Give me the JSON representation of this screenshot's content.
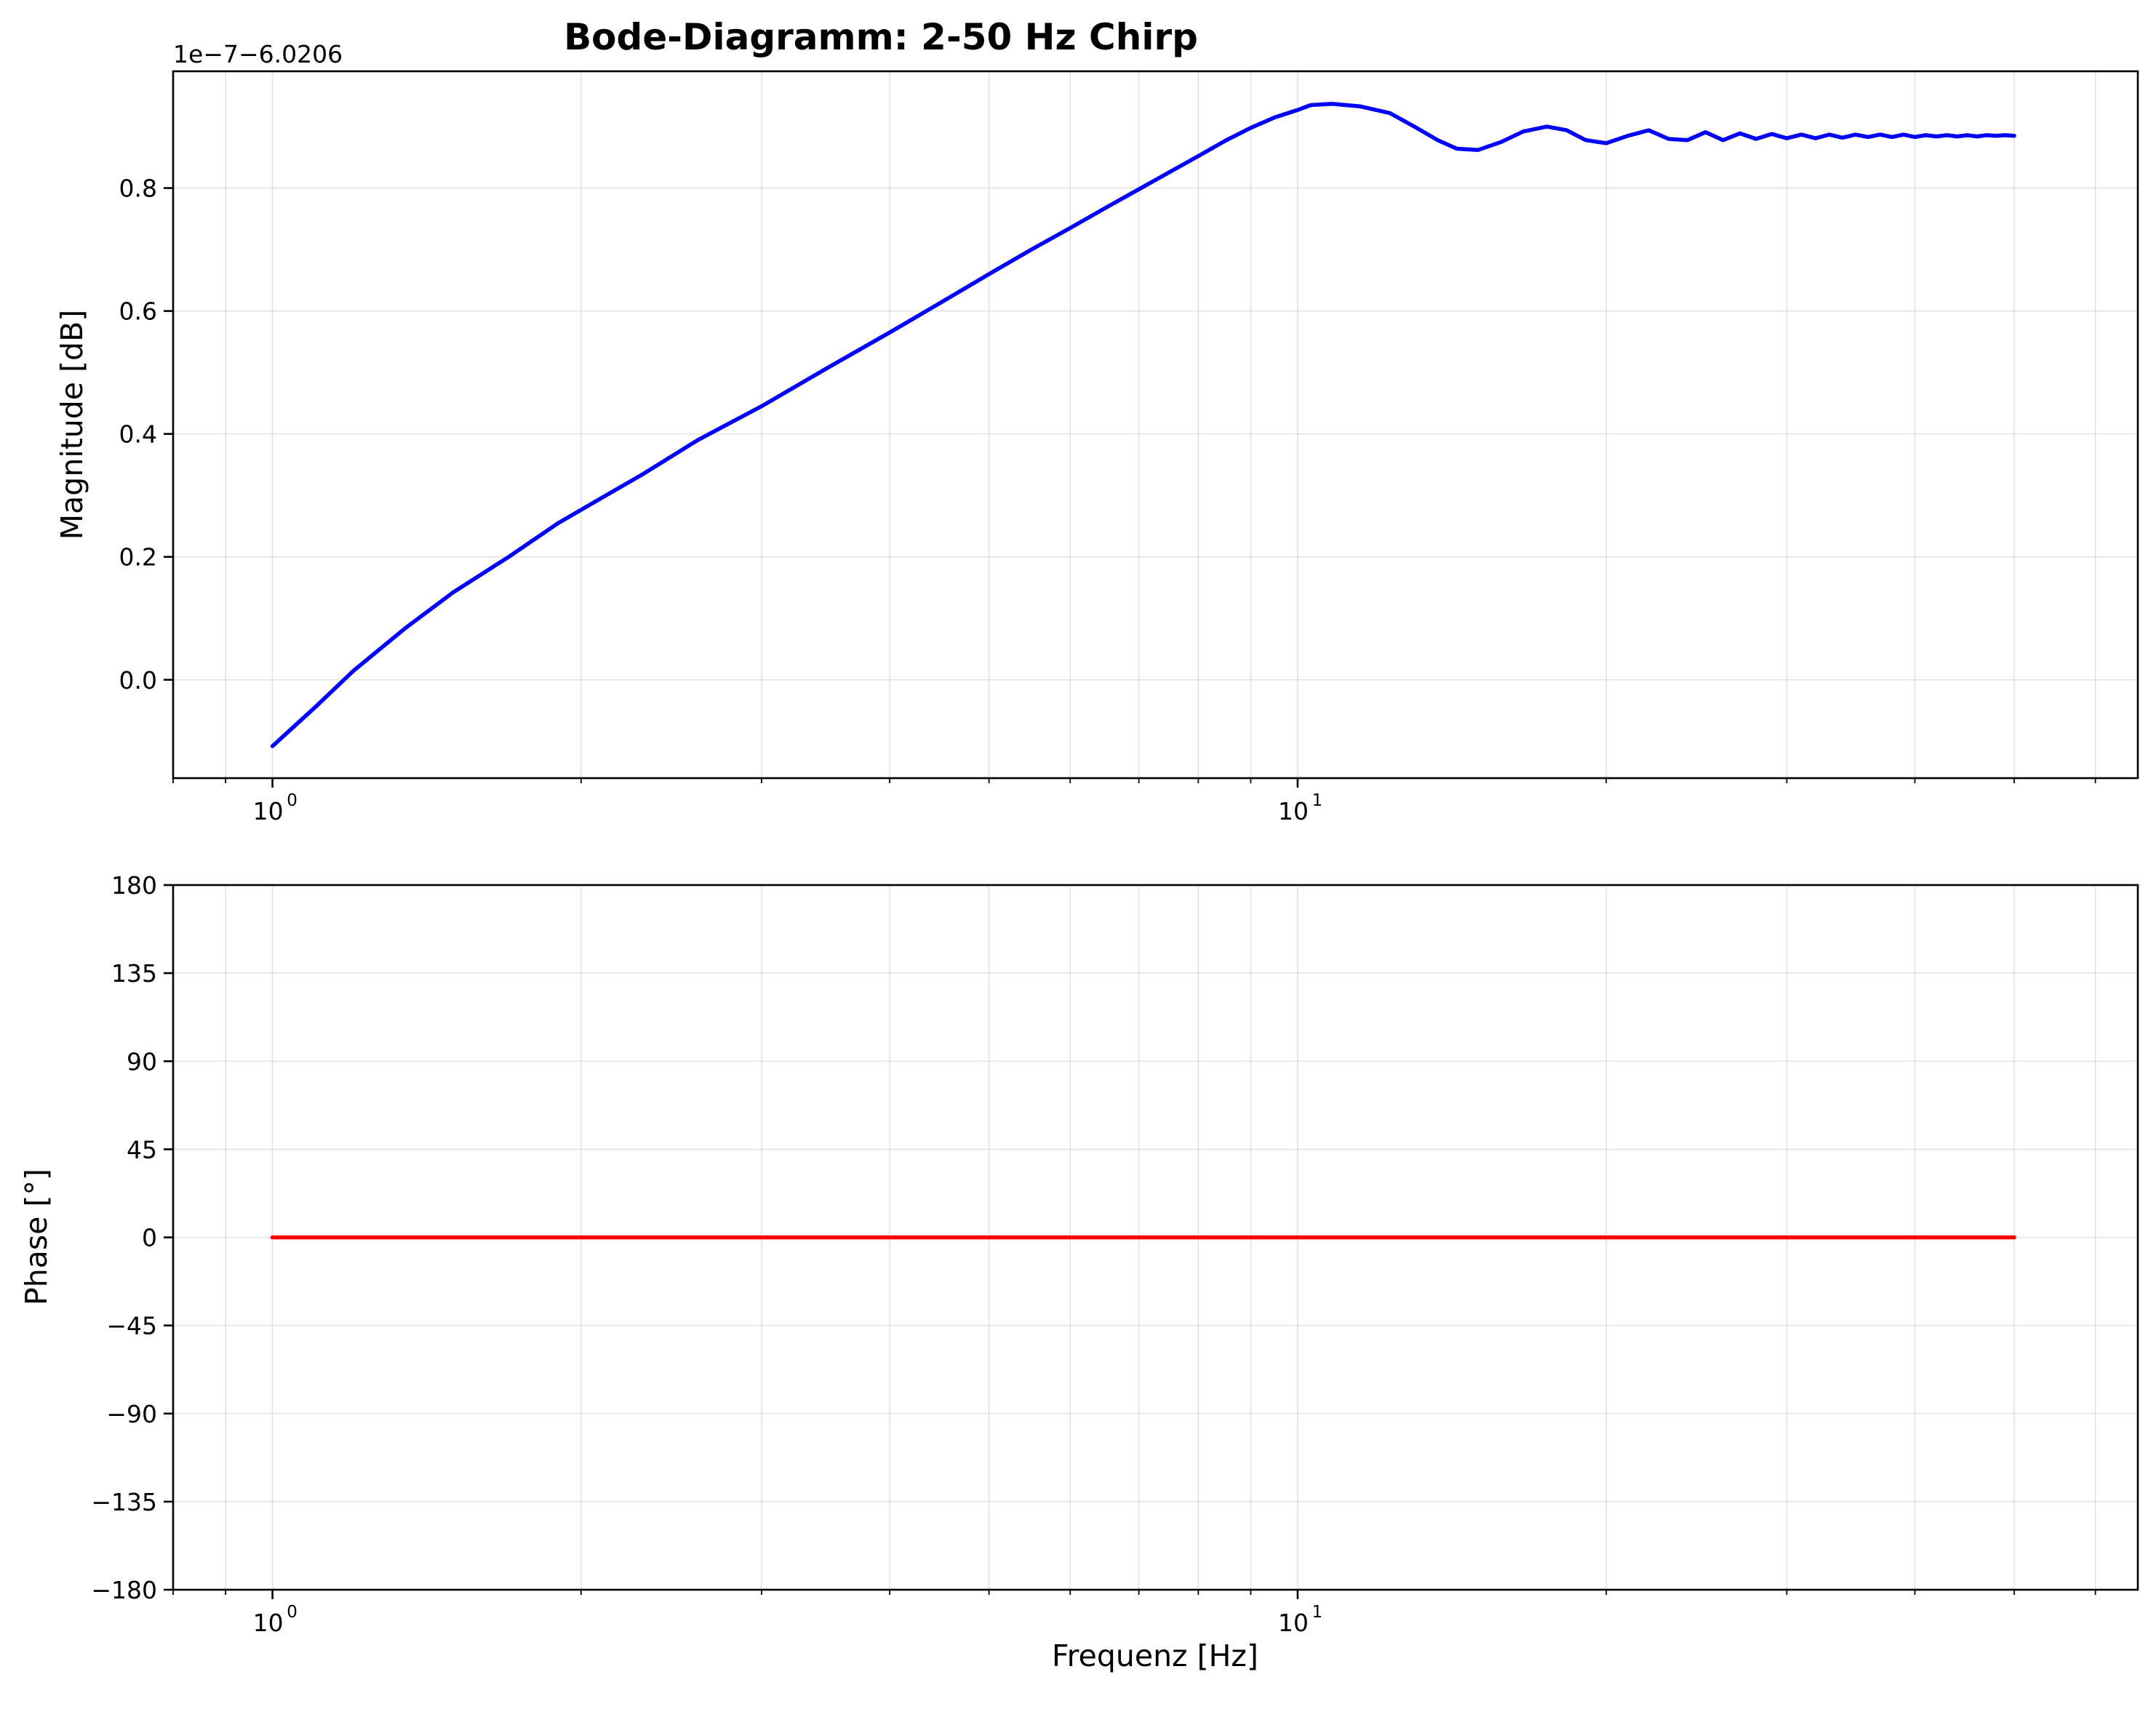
{
  "chart_data": {
    "type": "line",
    "title": "Bode-Diagramm: 2-50 Hz Chirp",
    "xlabel": "Frequenz [Hz]",
    "x_scale": "log",
    "xlim": [
      0.8,
      66
    ],
    "x_ticks": [
      1,
      10
    ],
    "panels": [
      {
        "name": "magnitude",
        "ylabel": "Magnitude [dB]",
        "y_offset_text": "1e−7−6.0206",
        "ylim": [
          -0.16,
          0.99
        ],
        "y_ticks": [
          0.0,
          0.2,
          0.4,
          0.6,
          0.8
        ],
        "y_tick_labels": [
          "0.0",
          "0.2",
          "0.4",
          "0.6",
          "0.8"
        ],
        "color": "#0000ff",
        "series": [
          {
            "x": [
              1.0,
              1.1,
              1.2,
              1.35,
              1.5,
              1.7,
              1.9,
              2.1,
              2.3,
              2.6,
              3.0,
              3.5,
              4.0,
              4.5,
              5.0,
              5.5,
              6.0,
              6.5,
              7.0,
              7.5,
              8.0,
              8.5,
              9.0,
              9.5,
              10.0,
              10.3,
              10.8,
              11.5,
              12.3,
              13.0,
              13.7,
              14.3,
              15.0,
              15.8,
              16.6,
              17.5,
              18.3,
              19.1,
              20.0,
              21.0,
              22.0,
              23.0,
              24.0,
              25.0,
              26.0,
              27.0,
              28.0,
              29.0,
              30.0,
              31.0,
              32.0,
              33.0,
              34.0,
              35.0,
              36.0,
              37.0,
              38.0,
              39.0,
              40.0,
              41.0,
              42.0,
              43.0,
              44.0,
              45.0,
              46.0,
              47.0,
              48.0,
              49.0,
              50.0
            ],
            "y": [
              -0.108,
              -0.045,
              0.015,
              0.085,
              0.142,
              0.2,
              0.255,
              0.297,
              0.335,
              0.39,
              0.445,
              0.51,
              0.565,
              0.615,
              0.66,
              0.7,
              0.735,
              0.768,
              0.798,
              0.826,
              0.852,
              0.877,
              0.898,
              0.915,
              0.927,
              0.935,
              0.937,
              0.933,
              0.922,
              0.9,
              0.878,
              0.864,
              0.862,
              0.875,
              0.892,
              0.9,
              0.894,
              0.878,
              0.873,
              0.885,
              0.894,
              0.88,
              0.878,
              0.891,
              0.878,
              0.889,
              0.88,
              0.888,
              0.881,
              0.887,
              0.881,
              0.887,
              0.882,
              0.887,
              0.883,
              0.887,
              0.883,
              0.887,
              0.883,
              0.886,
              0.884,
              0.886,
              0.884,
              0.886,
              0.884,
              0.886,
              0.885,
              0.886,
              0.885
            ]
          }
        ]
      },
      {
        "name": "phase",
        "ylabel": "Phase [°]",
        "ylim": [
          -180,
          180
        ],
        "y_ticks": [
          -180,
          -135,
          -90,
          -45,
          0,
          45,
          90,
          135,
          180
        ],
        "y_tick_labels": [
          "−180",
          "−135",
          "−90",
          "−45",
          "0",
          "45",
          "90",
          "135",
          "180"
        ],
        "color": "#ff0000",
        "series": [
          {
            "x": [
              1,
              50
            ],
            "y": [
              0,
              0
            ]
          }
        ]
      }
    ],
    "grid": true,
    "legend": "none"
  }
}
